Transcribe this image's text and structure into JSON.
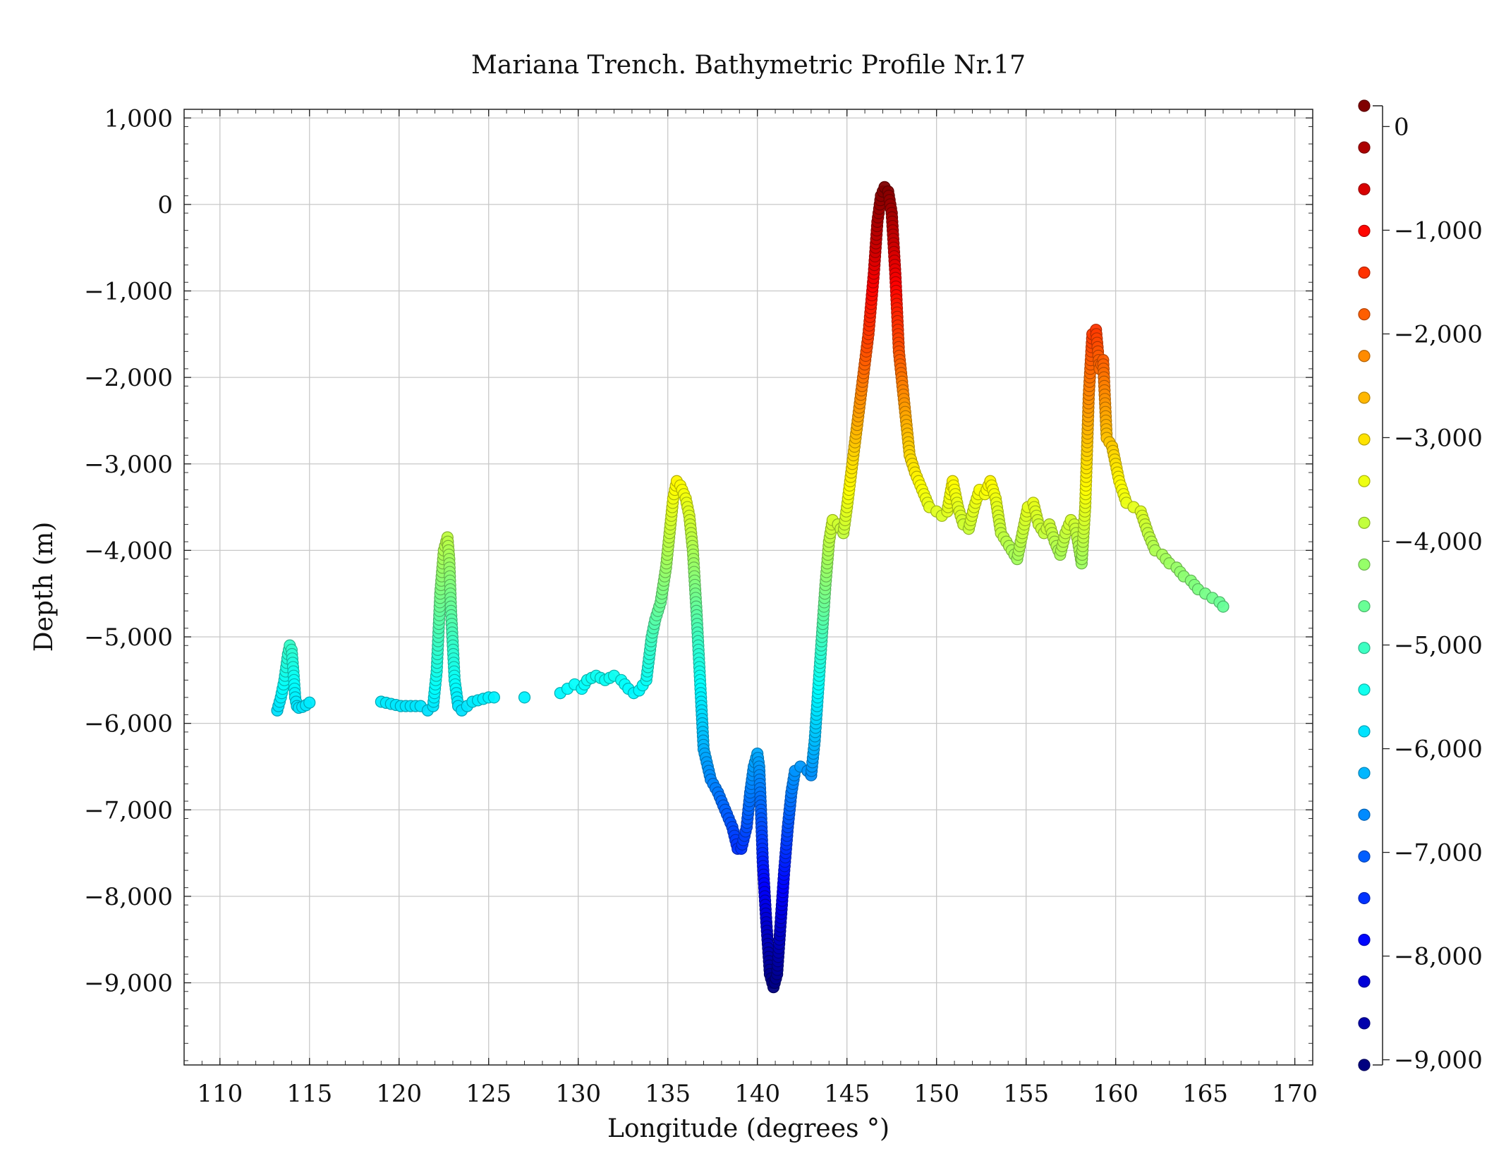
{
  "chart_data": {
    "type": "scatter",
    "title": "Mariana Trench. Bathymetric Profile Nr.17",
    "xlabel": "Longitude (degrees °)",
    "ylabel": "Depth (m)",
    "xlim": [
      108,
      171
    ],
    "ylim": [
      -9950,
      1100
    ],
    "xticks": [
      110,
      115,
      120,
      125,
      130,
      135,
      140,
      145,
      150,
      155,
      160,
      165,
      170
    ],
    "xtick_labels": [
      "110",
      "115",
      "120",
      "125",
      "130",
      "135",
      "140",
      "145",
      "150",
      "155",
      "160",
      "165",
      "170"
    ],
    "yticks": [
      1000,
      0,
      -1000,
      -2000,
      -3000,
      -4000,
      -5000,
      -6000,
      -7000,
      -8000,
      -9000
    ],
    "ytick_labels": [
      "1,000",
      "0",
      "−1,000",
      "−2,000",
      "−3,000",
      "−4,000",
      "−5,000",
      "−6,000",
      "−7,000",
      "−8,000",
      "−9,000"
    ],
    "grid": true,
    "colormap": "jet",
    "legend": {
      "placement": "right",
      "range": [
        -9050,
        200
      ],
      "ticks": [
        0,
        -1000,
        -2000,
        -3000,
        -4000,
        -5000,
        -6000,
        -7000,
        -8000,
        -9000
      ],
      "tick_labels": [
        "0",
        "−1,000",
        "−2,000",
        "−3,000",
        "−4,000",
        "−5,000",
        "−6,000",
        "−7,000",
        "−8,000",
        "−9,000"
      ],
      "markers": 24
    },
    "series": [
      {
        "x": [
          113.2,
          113.4,
          113.6,
          113.8,
          113.9,
          114.0,
          114.1,
          114.2,
          114.3,
          114.4,
          114.6,
          114.8,
          115.0,
          119.0,
          120.1,
          121.2,
          121.6,
          121.9,
          122.1,
          122.3,
          122.5,
          122.7,
          122.8,
          122.9,
          123.1,
          123.3,
          123.5,
          123.8,
          124.1,
          125.0,
          125.3,
          127.0,
          129.0,
          129.4,
          129.8,
          130.2,
          130.5,
          131.0,
          131.5,
          132.0,
          132.4,
          132.8,
          133.1,
          133.4,
          133.8,
          134.1,
          134.3,
          134.6,
          134.9,
          135.1,
          135.3,
          135.5,
          135.7,
          136.0,
          136.2,
          136.4,
          136.6,
          136.8,
          137.0,
          137.4,
          137.8,
          138.2,
          138.6,
          138.9,
          139.1,
          139.4,
          139.6,
          139.8,
          140.0,
          140.1,
          140.2,
          140.3,
          140.5,
          140.7,
          140.9,
          141.1,
          141.3,
          141.5,
          141.7,
          141.9,
          142.1,
          142.4,
          142.8,
          143.0,
          143.2,
          143.4,
          143.6,
          143.8,
          144.0,
          144.2,
          144.5,
          144.8,
          145.0,
          145.3,
          145.6,
          145.9,
          146.2,
          146.5,
          146.7,
          146.9,
          147.1,
          147.3,
          147.5,
          147.7,
          147.9,
          148.1,
          148.3,
          148.5,
          148.8,
          149.2,
          149.6,
          150.0,
          150.3,
          150.6,
          150.9,
          151.2,
          151.5,
          151.8,
          152.1,
          152.4,
          152.7,
          153.0,
          153.3,
          153.6,
          153.9,
          154.2,
          154.5,
          154.8,
          155.1,
          155.4,
          155.7,
          156.0,
          156.3,
          156.6,
          156.9,
          157.2,
          157.5,
          157.7,
          157.9,
          158.1,
          158.3,
          158.5,
          158.7,
          158.9,
          159.1,
          159.3,
          159.5,
          159.8,
          160.2,
          160.6,
          161.0,
          161.4,
          161.8,
          162.2,
          162.6,
          163.0,
          163.4,
          163.8,
          164.2,
          164.6,
          165.0,
          165.4,
          165.8,
          166.0
        ],
        "y": [
          -5850,
          -5700,
          -5500,
          -5200,
          -5100,
          -5150,
          -5400,
          -5700,
          -5800,
          -5820,
          -5810,
          -5790,
          -5760,
          -5750,
          -5800,
          -5800,
          -5850,
          -5800,
          -5400,
          -4500,
          -4000,
          -3850,
          -4100,
          -4700,
          -5500,
          -5800,
          -5850,
          -5800,
          -5750,
          -5700,
          -5700,
          -5700,
          -5650,
          -5600,
          -5550,
          -5600,
          -5500,
          -5450,
          -5500,
          -5450,
          -5500,
          -5600,
          -5650,
          -5620,
          -5500,
          -5000,
          -4800,
          -4600,
          -4200,
          -3800,
          -3400,
          -3200,
          -3250,
          -3400,
          -3600,
          -4000,
          -4700,
          -5500,
          -6300,
          -6650,
          -6800,
          -7000,
          -7200,
          -7450,
          -7450,
          -7200,
          -6800,
          -6500,
          -6350,
          -6500,
          -7000,
          -7600,
          -8300,
          -8900,
          -9050,
          -8900,
          -8300,
          -7700,
          -7200,
          -6800,
          -6550,
          -6500,
          -6550,
          -6600,
          -6200,
          -5600,
          -5000,
          -4400,
          -3900,
          -3650,
          -3700,
          -3800,
          -3500,
          -3000,
          -2500,
          -2000,
          -1500,
          -800,
          -200,
          100,
          200,
          150,
          -100,
          -800,
          -1700,
          -2100,
          -2500,
          -2900,
          -3100,
          -3300,
          -3500,
          -3550,
          -3600,
          -3550,
          -3200,
          -3500,
          -3700,
          -3750,
          -3500,
          -3300,
          -3350,
          -3200,
          -3400,
          -3800,
          -3900,
          -4000,
          -4100,
          -3800,
          -3500,
          -3450,
          -3700,
          -3800,
          -3700,
          -3900,
          -4050,
          -3800,
          -3650,
          -3700,
          -3900,
          -4150,
          -3500,
          -2200,
          -1500,
          -1450,
          -1900,
          -1800,
          -2700,
          -2800,
          -3200,
          -3450,
          -3500,
          -3550,
          -3800,
          -4000,
          -4050,
          -4150,
          -4200,
          -4300,
          -4350,
          -4450,
          -4500,
          -4550,
          -4600,
          -4650
        ]
      }
    ]
  }
}
